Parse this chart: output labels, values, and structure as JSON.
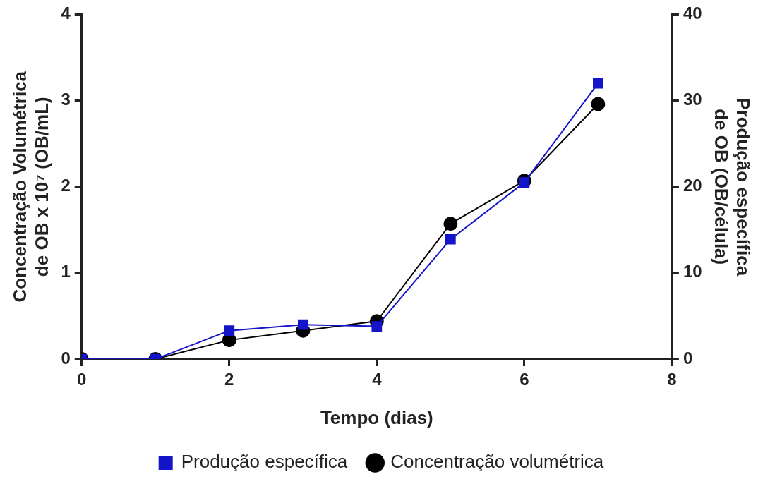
{
  "chart_data": {
    "type": "line",
    "xlabel": "Tempo (dias)",
    "ylabel": "Concentração Volumétrica de OB x 10⁷ (OB/mL)",
    "y2label": "Produção específica de OB (OB/célula)",
    "x": [
      0,
      1,
      2,
      3,
      4,
      5,
      6,
      7
    ],
    "series": [
      {
        "name": "Concentração volumétrica",
        "color": "#000000",
        "marker": "circle",
        "values": [
          0,
          0,
          0.22,
          0.33,
          0.44,
          1.57,
          2.07,
          2.96
        ]
      },
      {
        "name": "Produção específica",
        "color": "#1414c8",
        "marker": "square",
        "axis": "y2",
        "values": [
          0,
          0,
          3.3,
          4.0,
          3.8,
          13.9,
          20.5,
          32.0
        ]
      }
    ],
    "xlim": [
      0,
      8
    ],
    "xticks": [
      0,
      2,
      4,
      6,
      8
    ],
    "ylim": [
      0,
      4
    ],
    "yticks": [
      0,
      1,
      2,
      3,
      4
    ],
    "y2lim": [
      0,
      40
    ],
    "y2ticks": [
      0,
      10,
      20,
      30,
      40
    ],
    "grid": false,
    "legend": "bottom",
    "line_style": "solid"
  }
}
